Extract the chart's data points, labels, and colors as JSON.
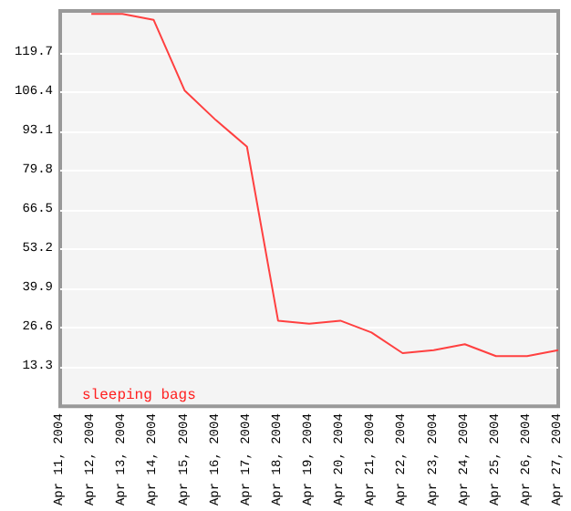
{
  "chart_data": {
    "type": "line",
    "categories": [
      "Apr 11, 2004",
      "Apr 12, 2004",
      "Apr 13, 2004",
      "Apr 14, 2004",
      "Apr 15, 2004",
      "Apr 16, 2004",
      "Apr 17, 2004",
      "Apr 18, 2004",
      "Apr 19, 2004",
      "Apr 20, 2004",
      "Apr 21, 2004",
      "Apr 22, 2004",
      "Apr 23, 2004",
      "Apr 24, 2004",
      "Apr 25, 2004",
      "Apr 26, 2004",
      "Apr 27, 2004"
    ],
    "series": [
      {
        "name": "sleeping bags",
        "color": "#ff4040",
        "values": [
          null,
          133,
          133,
          131,
          107,
          97,
          88,
          29,
          28,
          29,
          25,
          18,
          19,
          21,
          17,
          17,
          19
        ]
      }
    ],
    "ylim": [
      0,
      134
    ],
    "yticks": [
      13.3,
      26.6,
      39.9,
      53.2,
      66.5,
      79.8,
      93.1,
      106.4,
      119.7
    ],
    "grid": "y",
    "legend": "bottom",
    "marker": "none",
    "line_style": "solid"
  }
}
